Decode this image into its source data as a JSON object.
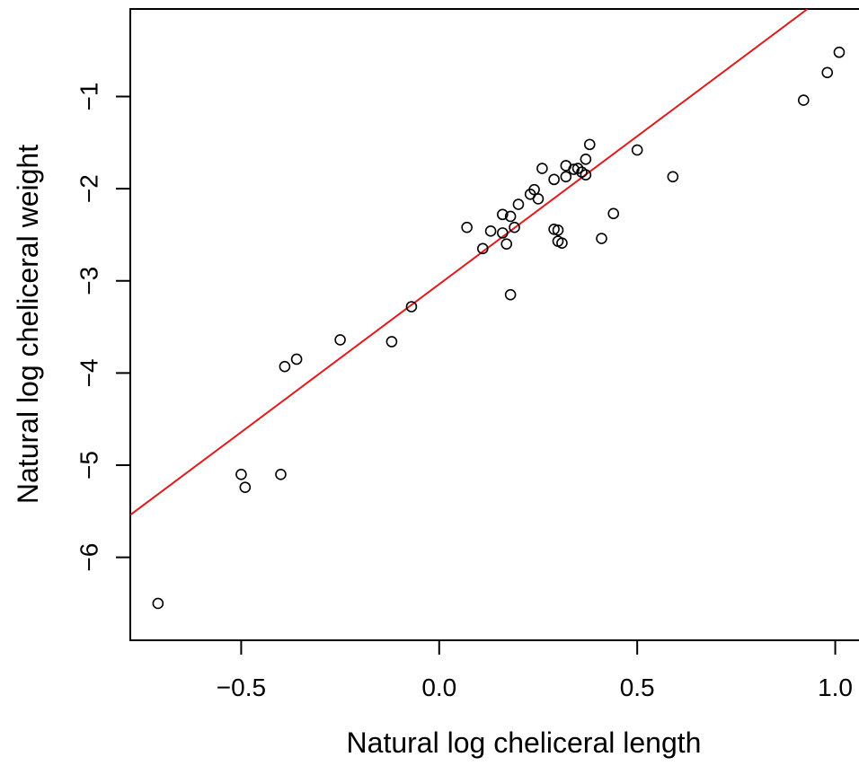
{
  "chart_data": {
    "type": "scatter",
    "title": "",
    "xlabel": "Natural log cheliceral length",
    "ylabel": "Natural log cheliceral weight",
    "xlim": [
      -0.78,
      1.06
    ],
    "ylim": [
      -6.9,
      -0.05
    ],
    "x_ticks": [
      -0.5,
      0.0,
      0.5,
      1.0
    ],
    "x_tick_labels": [
      "−0.5",
      "0.0",
      "0.5",
      "1.0"
    ],
    "y_ticks": [
      -6,
      -5,
      -4,
      -3,
      -2,
      -1
    ],
    "y_tick_labels": [
      "−6",
      "−5",
      "−4",
      "−3",
      "−2",
      "−1"
    ],
    "grid": false,
    "legend": "none",
    "series": [
      {
        "type": "scatter",
        "marker": "open-circle",
        "color": "#000000",
        "points": [
          {
            "x": -0.71,
            "y": -6.5
          },
          {
            "x": -0.5,
            "y": -5.1
          },
          {
            "x": -0.49,
            "y": -5.24
          },
          {
            "x": -0.4,
            "y": -5.1
          },
          {
            "x": -0.39,
            "y": -3.93
          },
          {
            "x": -0.36,
            "y": -3.85
          },
          {
            "x": -0.25,
            "y": -3.64
          },
          {
            "x": -0.12,
            "y": -3.66
          },
          {
            "x": -0.07,
            "y": -3.28
          },
          {
            "x": 0.07,
            "y": -2.42
          },
          {
            "x": 0.11,
            "y": -2.65
          },
          {
            "x": 0.13,
            "y": -2.46
          },
          {
            "x": 0.16,
            "y": -2.28
          },
          {
            "x": 0.16,
            "y": -2.48
          },
          {
            "x": 0.17,
            "y": -2.6
          },
          {
            "x": 0.18,
            "y": -2.3
          },
          {
            "x": 0.18,
            "y": -3.15
          },
          {
            "x": 0.19,
            "y": -2.42
          },
          {
            "x": 0.2,
            "y": -2.17
          },
          {
            "x": 0.23,
            "y": -2.06
          },
          {
            "x": 0.24,
            "y": -2.01
          },
          {
            "x": 0.25,
            "y": -2.11
          },
          {
            "x": 0.26,
            "y": -1.78
          },
          {
            "x": 0.29,
            "y": -2.44
          },
          {
            "x": 0.29,
            "y": -1.9
          },
          {
            "x": 0.3,
            "y": -2.45
          },
          {
            "x": 0.3,
            "y": -2.57
          },
          {
            "x": 0.31,
            "y": -2.59
          },
          {
            "x": 0.32,
            "y": -1.75
          },
          {
            "x": 0.32,
            "y": -1.87
          },
          {
            "x": 0.34,
            "y": -1.79
          },
          {
            "x": 0.35,
            "y": -1.78
          },
          {
            "x": 0.36,
            "y": -1.82
          },
          {
            "x": 0.37,
            "y": -1.85
          },
          {
            "x": 0.37,
            "y": -1.68
          },
          {
            "x": 0.38,
            "y": -1.52
          },
          {
            "x": 0.41,
            "y": -2.54
          },
          {
            "x": 0.44,
            "y": -2.27
          },
          {
            "x": 0.5,
            "y": -1.58
          },
          {
            "x": 0.59,
            "y": -1.87
          },
          {
            "x": 0.92,
            "y": -1.04
          },
          {
            "x": 0.98,
            "y": -0.74
          },
          {
            "x": 1.01,
            "y": -0.52
          }
        ]
      },
      {
        "type": "line",
        "style": "fit-line",
        "color": "#e31a1c",
        "points": [
          {
            "x": -0.78,
            "y": -5.54
          },
          {
            "x": 0.93,
            "y": -0.05
          }
        ]
      }
    ]
  }
}
